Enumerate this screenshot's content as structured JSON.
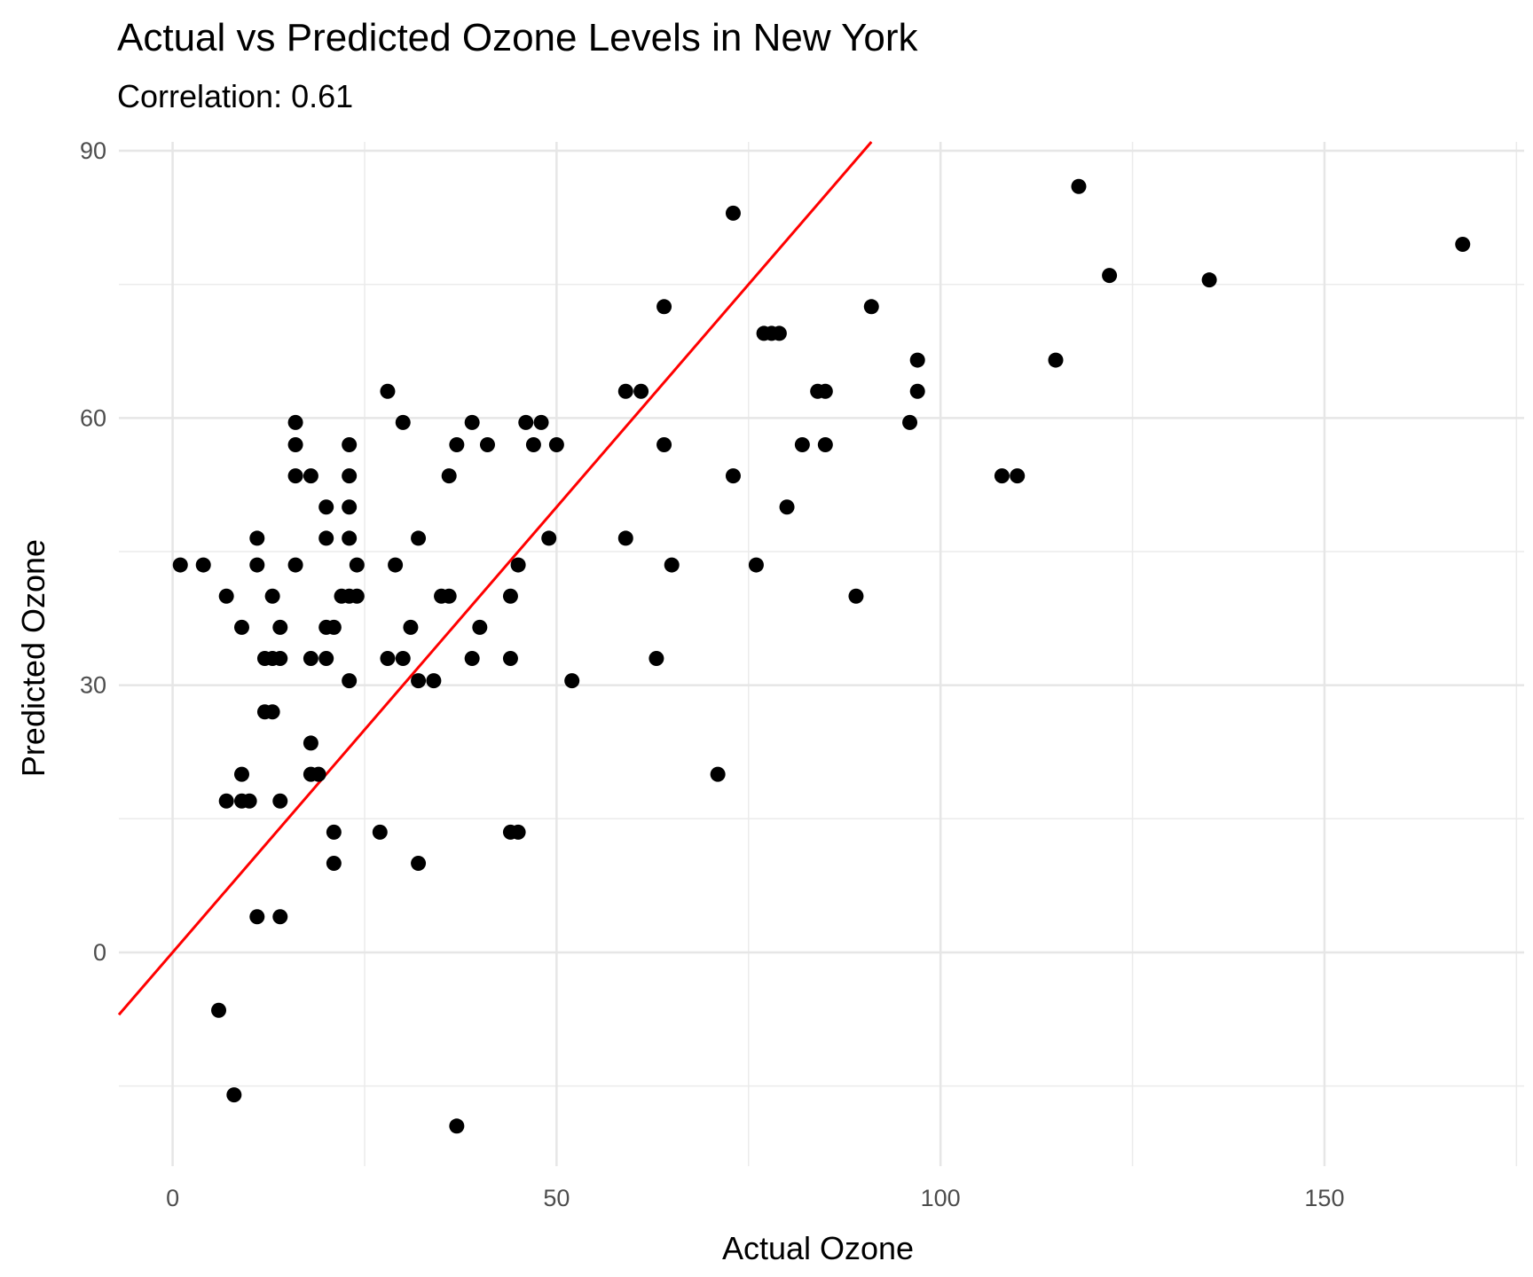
{
  "chart_data": {
    "type": "scatter",
    "title": "Actual vs Predicted Ozone Levels in New York",
    "subtitle": "Correlation: 0.61",
    "xlabel": "Actual Ozone",
    "ylabel": "Predicted Ozone",
    "xlim": [
      -7,
      176
    ],
    "ylim": [
      -24,
      91
    ],
    "x_ticks": [
      0,
      50,
      100,
      150
    ],
    "y_ticks": [
      0,
      30,
      60,
      90
    ],
    "x_tick_labels": [
      "0",
      "50",
      "100",
      "150"
    ],
    "y_tick_labels": [
      "0",
      "30",
      "60",
      "90"
    ],
    "grid": true,
    "reference_line": {
      "slope": 1,
      "intercept": 0,
      "color": "#ff0000"
    },
    "point_color": "#000000",
    "points": [
      {
        "x": 1,
        "y": 43.5
      },
      {
        "x": 4,
        "y": 43.5
      },
      {
        "x": 7,
        "y": 40
      },
      {
        "x": 9,
        "y": 36.5
      },
      {
        "x": 11,
        "y": 46.5
      },
      {
        "x": 11,
        "y": 43.5
      },
      {
        "x": 12,
        "y": 33
      },
      {
        "x": 12,
        "y": 27
      },
      {
        "x": 13,
        "y": 40
      },
      {
        "x": 13,
        "y": 33
      },
      {
        "x": 13,
        "y": 27
      },
      {
        "x": 14,
        "y": 36.5
      },
      {
        "x": 14,
        "y": 33
      },
      {
        "x": 16,
        "y": 59.5
      },
      {
        "x": 16,
        "y": 57
      },
      {
        "x": 16,
        "y": 53.5
      },
      {
        "x": 16,
        "y": 43.5
      },
      {
        "x": 18,
        "y": 53.5
      },
      {
        "x": 18,
        "y": 33
      },
      {
        "x": 18,
        "y": 23.5
      },
      {
        "x": 18,
        "y": 20
      },
      {
        "x": 19,
        "y": 20
      },
      {
        "x": 20,
        "y": 50
      },
      {
        "x": 20,
        "y": 46.5
      },
      {
        "x": 20,
        "y": 36.5
      },
      {
        "x": 20,
        "y": 33
      },
      {
        "x": 21,
        "y": 36.5
      },
      {
        "x": 22,
        "y": 40
      },
      {
        "x": 23,
        "y": 57
      },
      {
        "x": 23,
        "y": 53.5
      },
      {
        "x": 23,
        "y": 50
      },
      {
        "x": 23,
        "y": 46.5
      },
      {
        "x": 23,
        "y": 40
      },
      {
        "x": 23,
        "y": 30.5
      },
      {
        "x": 24,
        "y": 43.5
      },
      {
        "x": 24,
        "y": 40
      },
      {
        "x": 28,
        "y": 63
      },
      {
        "x": 28,
        "y": 33
      },
      {
        "x": 29,
        "y": 43.5
      },
      {
        "x": 30,
        "y": 59.5
      },
      {
        "x": 30,
        "y": 33
      },
      {
        "x": 31,
        "y": 36.5
      },
      {
        "x": 32,
        "y": 46.5
      },
      {
        "x": 32,
        "y": 30.5
      },
      {
        "x": 34,
        "y": 30.5
      },
      {
        "x": 35,
        "y": 40
      },
      {
        "x": 36,
        "y": 53.5
      },
      {
        "x": 36,
        "y": 40
      },
      {
        "x": 37,
        "y": 57
      },
      {
        "x": 39,
        "y": 59.5
      },
      {
        "x": 39,
        "y": 33
      },
      {
        "x": 40,
        "y": 36.5
      },
      {
        "x": 41,
        "y": 57
      },
      {
        "x": 44,
        "y": 40
      },
      {
        "x": 44,
        "y": 33
      },
      {
        "x": 45,
        "y": 43.5
      },
      {
        "x": 46,
        "y": 59.5
      },
      {
        "x": 47,
        "y": 57
      },
      {
        "x": 48,
        "y": 59.5
      },
      {
        "x": 49,
        "y": 46.5
      },
      {
        "x": 50,
        "y": 57
      },
      {
        "x": 52,
        "y": 30.5
      },
      {
        "x": 59,
        "y": 63
      },
      {
        "x": 59,
        "y": 46.5
      },
      {
        "x": 61,
        "y": 63
      },
      {
        "x": 63,
        "y": 33
      },
      {
        "x": 64,
        "y": 72.5
      },
      {
        "x": 64,
        "y": 57
      },
      {
        "x": 65,
        "y": 43.5
      },
      {
        "x": 71,
        "y": 20
      },
      {
        "x": 73,
        "y": 83
      },
      {
        "x": 73,
        "y": 53.5
      },
      {
        "x": 76,
        "y": 43.5
      },
      {
        "x": 77,
        "y": 69.5
      },
      {
        "x": 78,
        "y": 69.5
      },
      {
        "x": 79,
        "y": 69.5
      },
      {
        "x": 80,
        "y": 50
      },
      {
        "x": 82,
        "y": 57
      },
      {
        "x": 84,
        "y": 63
      },
      {
        "x": 85,
        "y": 63
      },
      {
        "x": 85,
        "y": 57
      },
      {
        "x": 89,
        "y": 40
      },
      {
        "x": 91,
        "y": 72.5
      },
      {
        "x": 96,
        "y": 59.5
      },
      {
        "x": 97,
        "y": 66.5
      },
      {
        "x": 97,
        "y": 63
      },
      {
        "x": 108,
        "y": 53.5
      },
      {
        "x": 110,
        "y": 53.5
      },
      {
        "x": 115,
        "y": 66.5
      },
      {
        "x": 118,
        "y": 86
      },
      {
        "x": 122,
        "y": 76
      },
      {
        "x": 135,
        "y": 75.5
      },
      {
        "x": 168,
        "y": 79.5
      },
      {
        "x": 7,
        "y": 17
      },
      {
        "x": 9,
        "y": 20
      },
      {
        "x": 9,
        "y": 17
      },
      {
        "x": 10,
        "y": 17
      },
      {
        "x": 14,
        "y": 17
      },
      {
        "x": 11,
        "y": 4
      },
      {
        "x": 14,
        "y": 4
      },
      {
        "x": 21,
        "y": 13.5
      },
      {
        "x": 21,
        "y": 10
      },
      {
        "x": 27,
        "y": 13.5
      },
      {
        "x": 32,
        "y": 10
      },
      {
        "x": 44,
        "y": 13.5
      },
      {
        "x": 45,
        "y": 13.5
      },
      {
        "x": 6,
        "y": -6.5
      },
      {
        "x": 8,
        "y": -16
      },
      {
        "x": 37,
        "y": -19.5
      }
    ]
  }
}
